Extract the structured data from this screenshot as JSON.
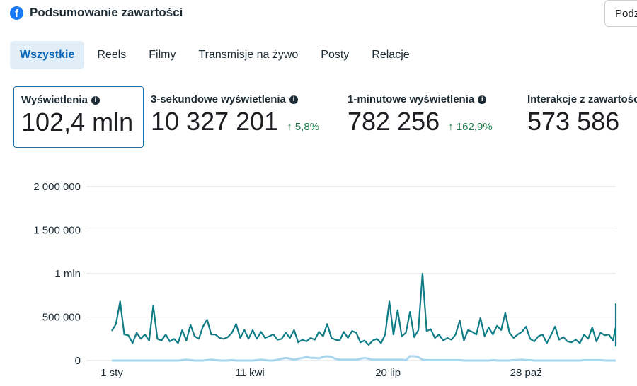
{
  "header": {
    "title": "Podsumowanie zawartości",
    "share_label": "Podz"
  },
  "tabs": [
    {
      "label": "Wszystkie"
    },
    {
      "label": "Reels"
    },
    {
      "label": "Filmy"
    },
    {
      "label": "Transmisje na żywo"
    },
    {
      "label": "Posty"
    },
    {
      "label": "Relacje"
    }
  ],
  "metrics": [
    {
      "label": "Wyświetlenia",
      "value": "102,4 mln",
      "change": ""
    },
    {
      "label": "3-sekundowe wyświetlenia",
      "value": "10 327 201",
      "change": "↑ 5,8%"
    },
    {
      "label": "1-minutowe wyświetlenia",
      "value": "782 256",
      "change": "↑ 162,9%"
    },
    {
      "label": "Interakcje z zawartością",
      "value": "573 586",
      "change": ""
    }
  ],
  "chart_data": {
    "type": "line",
    "ylim": [
      0,
      2000000
    ],
    "yticks": [
      {
        "v": 2000000,
        "label": "2 000 000"
      },
      {
        "v": 1500000,
        "label": "1 500 000"
      },
      {
        "v": 1000000,
        "label": "1 mln"
      },
      {
        "v": 500000,
        "label": "500 000"
      },
      {
        "v": 0,
        "label": "0"
      }
    ],
    "xlim": [
      0,
      365
    ],
    "xticks": [
      {
        "v": 0,
        "label": "1 sty"
      },
      {
        "v": 100,
        "label": "11 kwi"
      },
      {
        "v": 200,
        "label": "20 lip"
      },
      {
        "v": 300,
        "label": "28 paź"
      }
    ],
    "step_days": 3,
    "series": [
      {
        "name": "Wyświetlenia",
        "color": "#0f7c86",
        "values": [
          340,
          420,
          680,
          300,
          290,
          200,
          320,
          250,
          300,
          230,
          630,
          250,
          230,
          300,
          220,
          250,
          200,
          350,
          230,
          410,
          280,
          250,
          390,
          470,
          300,
          300,
          260,
          250,
          270,
          320,
          420,
          260,
          350,
          250,
          350,
          250,
          330,
          260,
          280,
          300,
          240,
          250,
          320,
          260,
          350,
          210,
          240,
          220,
          260,
          240,
          330,
          280,
          420,
          260,
          240,
          230,
          330,
          260,
          340,
          320,
          210,
          230,
          180,
          230,
          250,
          200,
          300,
          680,
          300,
          580,
          280,
          320,
          560,
          270,
          350,
          1000,
          340,
          360,
          260,
          300,
          230,
          260,
          240,
          300,
          460,
          230,
          350,
          330,
          300,
          490,
          280,
          380,
          300,
          400,
          350,
          550,
          320,
          260,
          300,
          330,
          390,
          250,
          220,
          280,
          300,
          200,
          290,
          390,
          240,
          270,
          220,
          210,
          240,
          200,
          300,
          250,
          380,
          220,
          320,
          290,
          300,
          230,
          390,
          220,
          290,
          240,
          450,
          210,
          250,
          220,
          320,
          260,
          410,
          240,
          220,
          240,
          300,
          250,
          650,
          220,
          300,
          160
        ]
      },
      {
        "name": "Inne",
        "color": "#a9d6ec",
        "values": [
          0,
          0,
          0,
          0,
          0,
          0,
          0,
          0,
          0,
          0,
          0,
          0,
          0,
          0,
          0,
          0,
          0,
          5,
          10,
          5,
          0,
          0,
          0,
          5,
          10,
          5,
          0,
          0,
          0,
          5,
          0,
          0,
          0,
          0,
          0,
          5,
          10,
          5,
          0,
          0,
          10,
          20,
          30,
          20,
          10,
          20,
          30,
          40,
          30,
          30,
          25,
          40,
          50,
          40,
          20,
          10,
          10,
          10,
          10,
          10,
          20,
          30,
          20,
          10,
          10,
          10,
          10,
          10,
          10,
          10,
          10,
          5,
          50,
          50,
          40,
          10,
          5,
          5,
          5,
          5,
          5,
          5,
          5,
          5,
          5,
          0,
          0,
          0,
          0,
          0,
          0,
          0,
          5,
          0,
          0,
          0,
          0,
          5,
          5,
          10,
          5,
          5,
          0,
          0,
          0,
          0,
          0,
          0,
          0,
          0,
          0,
          0,
          0,
          0,
          5,
          5,
          5,
          5,
          5,
          0,
          0,
          0,
          0,
          0,
          0,
          0,
          0,
          0,
          0,
          0,
          0,
          0,
          0,
          0,
          0,
          0,
          0,
          0,
          0,
          0,
          0,
          0
        ]
      }
    ],
    "value_unit": 1000
  }
}
